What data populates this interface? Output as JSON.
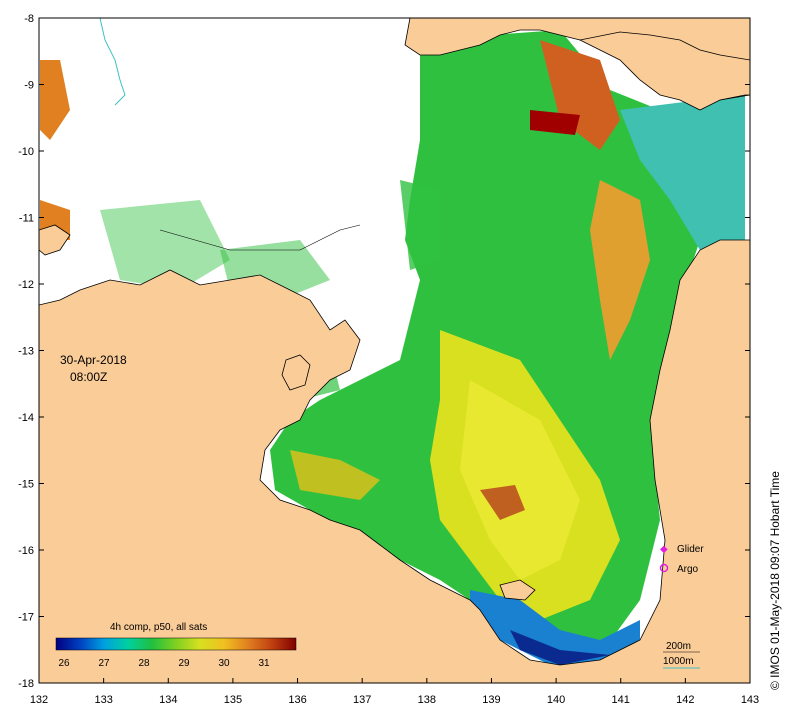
{
  "date_label": "30-Apr-2018",
  "time_label": "08:00Z",
  "credit": "© IMOS 01-May-2018 09:07 Hobart Time",
  "colorbar": {
    "title": "4h comp, p50, all sats",
    "ticks": [
      "26",
      "27",
      "28",
      "29",
      "30",
      "31"
    ],
    "colors": [
      "#000080",
      "#0040c0",
      "#00a0e0",
      "#00d0a0",
      "#20c040",
      "#80d020",
      "#d8e020",
      "#f0c020",
      "#e08020",
      "#c04010",
      "#800000"
    ]
  },
  "axes": {
    "lon_range": [
      132,
      143
    ],
    "lat_range": [
      -18,
      -8
    ],
    "x_ticks": [
      "132",
      "133",
      "134",
      "135",
      "136",
      "137",
      "138",
      "139",
      "140",
      "141",
      "142",
      "143"
    ],
    "y_ticks": [
      "-8",
      "-9",
      "-10",
      "-11",
      "-12",
      "-13",
      "-14",
      "-15",
      "-16",
      "-17",
      "-18"
    ]
  },
  "legend": {
    "glider_label": "Glider",
    "argo_label": "Argo",
    "glider_color": "#e020e0",
    "argo_color": "#e020e0"
  },
  "contours": {
    "c200_label": "200m",
    "c1000_label": "1000m",
    "c200_color": "#000000",
    "c1000_color": "#40c0c0"
  },
  "colors": {
    "land": "#facc98",
    "no_data": "#ffffff"
  }
}
